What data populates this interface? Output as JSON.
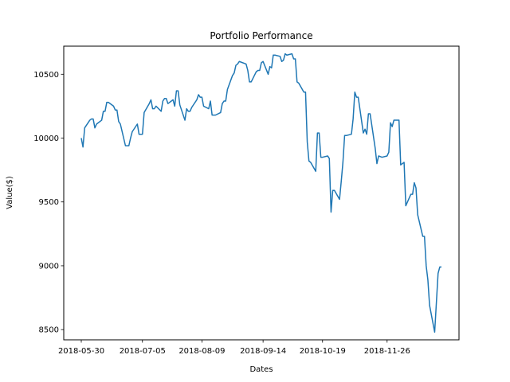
{
  "chart_data": {
    "type": "line",
    "title": "Portfolio Performance",
    "xlabel": "Dates",
    "ylabel": "Value($)",
    "x_ticks": [
      "2018-05-30",
      "2018-07-05",
      "2018-08-09",
      "2018-09-14",
      "2018-10-19",
      "2018-11-26"
    ],
    "y_ticks": [
      8500,
      9000,
      9500,
      10000,
      10500
    ],
    "ylim": [
      8420,
      10720
    ],
    "grid": false,
    "series": [
      {
        "color": "#1f77b4",
        "x": [
          "2018-05-30",
          "2018-05-31",
          "2018-06-01",
          "2018-06-04",
          "2018-06-05",
          "2018-06-06",
          "2018-06-07",
          "2018-06-08",
          "2018-06-11",
          "2018-06-12",
          "2018-06-13",
          "2018-06-14",
          "2018-06-15",
          "2018-06-18",
          "2018-06-19",
          "2018-06-20",
          "2018-06-21",
          "2018-06-22",
          "2018-06-25",
          "2018-06-26",
          "2018-06-27",
          "2018-06-28",
          "2018-06-29",
          "2018-07-02",
          "2018-07-03",
          "2018-07-05",
          "2018-07-06",
          "2018-07-09",
          "2018-07-10",
          "2018-07-11",
          "2018-07-12",
          "2018-07-13",
          "2018-07-16",
          "2018-07-17",
          "2018-07-18",
          "2018-07-19",
          "2018-07-20",
          "2018-07-23",
          "2018-07-24",
          "2018-07-25",
          "2018-07-26",
          "2018-07-27",
          "2018-07-30",
          "2018-07-31",
          "2018-08-01",
          "2018-08-02",
          "2018-08-03",
          "2018-08-06",
          "2018-08-07",
          "2018-08-08",
          "2018-08-09",
          "2018-08-10",
          "2018-08-13",
          "2018-08-14",
          "2018-08-15",
          "2018-08-16",
          "2018-08-17",
          "2018-08-20",
          "2018-08-21",
          "2018-08-22",
          "2018-08-23",
          "2018-08-24",
          "2018-08-27",
          "2018-08-28",
          "2018-08-29",
          "2018-08-30",
          "2018-08-31",
          "2018-09-04",
          "2018-09-05",
          "2018-09-06",
          "2018-09-07",
          "2018-09-10",
          "2018-09-11",
          "2018-09-12",
          "2018-09-13",
          "2018-09-14",
          "2018-09-17",
          "2018-09-18",
          "2018-09-19",
          "2018-09-20",
          "2018-09-21",
          "2018-09-24",
          "2018-09-25",
          "2018-09-26",
          "2018-09-27",
          "2018-09-28",
          "2018-10-01",
          "2018-10-02",
          "2018-10-03",
          "2018-10-04",
          "2018-10-05",
          "2018-10-08",
          "2018-10-09",
          "2018-10-10",
          "2018-10-11",
          "2018-10-12",
          "2018-10-15",
          "2018-10-16",
          "2018-10-17",
          "2018-10-18",
          "2018-10-19",
          "2018-10-22",
          "2018-10-23",
          "2018-10-24",
          "2018-10-25",
          "2018-10-26",
          "2018-10-29",
          "2018-10-30",
          "2018-10-31",
          "2018-11-01",
          "2018-11-02",
          "2018-11-05",
          "2018-11-06",
          "2018-11-07",
          "2018-11-08",
          "2018-11-09",
          "2018-11-12",
          "2018-11-13",
          "2018-11-14",
          "2018-11-15",
          "2018-11-16",
          "2018-11-19",
          "2018-11-20",
          "2018-11-21",
          "2018-11-23",
          "2018-11-26",
          "2018-11-27",
          "2018-11-28",
          "2018-11-29",
          "2018-11-30",
          "2018-12-03",
          "2018-12-04",
          "2018-12-06",
          "2018-12-07",
          "2018-12-10",
          "2018-12-11",
          "2018-12-12",
          "2018-12-13",
          "2018-12-14",
          "2018-12-17",
          "2018-12-18",
          "2018-12-19",
          "2018-12-20",
          "2018-12-21",
          "2018-12-24",
          "2018-12-26",
          "2018-12-27",
          "2018-12-28"
        ],
        "values": [
          10000,
          9930,
          10080,
          10140,
          10150,
          10150,
          10080,
          10110,
          10140,
          10210,
          10210,
          10280,
          10280,
          10250,
          10220,
          10220,
          10130,
          10110,
          9940,
          9940,
          9940,
          10000,
          10050,
          10110,
          10030,
          10030,
          10200,
          10270,
          10300,
          10230,
          10230,
          10250,
          10210,
          10290,
          10310,
          10310,
          10270,
          10300,
          10250,
          10370,
          10370,
          10260,
          10140,
          10230,
          10210,
          10210,
          10240,
          10300,
          10340,
          10320,
          10320,
          10250,
          10230,
          10290,
          10180,
          10180,
          10180,
          10200,
          10270,
          10290,
          10290,
          10380,
          10490,
          10510,
          10570,
          10580,
          10600,
          10580,
          10530,
          10440,
          10440,
          10520,
          10530,
          10530,
          10590,
          10600,
          10500,
          10560,
          10550,
          10650,
          10650,
          10640,
          10600,
          10610,
          10660,
          10650,
          10660,
          10620,
          10620,
          10440,
          10430,
          10360,
          10360,
          9970,
          9820,
          9810,
          9740,
          10040,
          10040,
          9850,
          9850,
          9860,
          9840,
          9420,
          9590,
          9590,
          9520,
          9660,
          9810,
          10020,
          10020,
          10030,
          10150,
          10360,
          10320,
          10320,
          10040,
          10070,
          10030,
          10190,
          10190,
          9920,
          9800,
          9860,
          9850,
          9860,
          9890,
          10120,
          10090,
          10140,
          10140,
          9790,
          9810,
          9470,
          9560,
          9560,
          9650,
          9610,
          9400,
          9230,
          9230,
          9000,
          8890,
          8690,
          8480,
          8940,
          8990,
          8990
        ]
      }
    ]
  }
}
